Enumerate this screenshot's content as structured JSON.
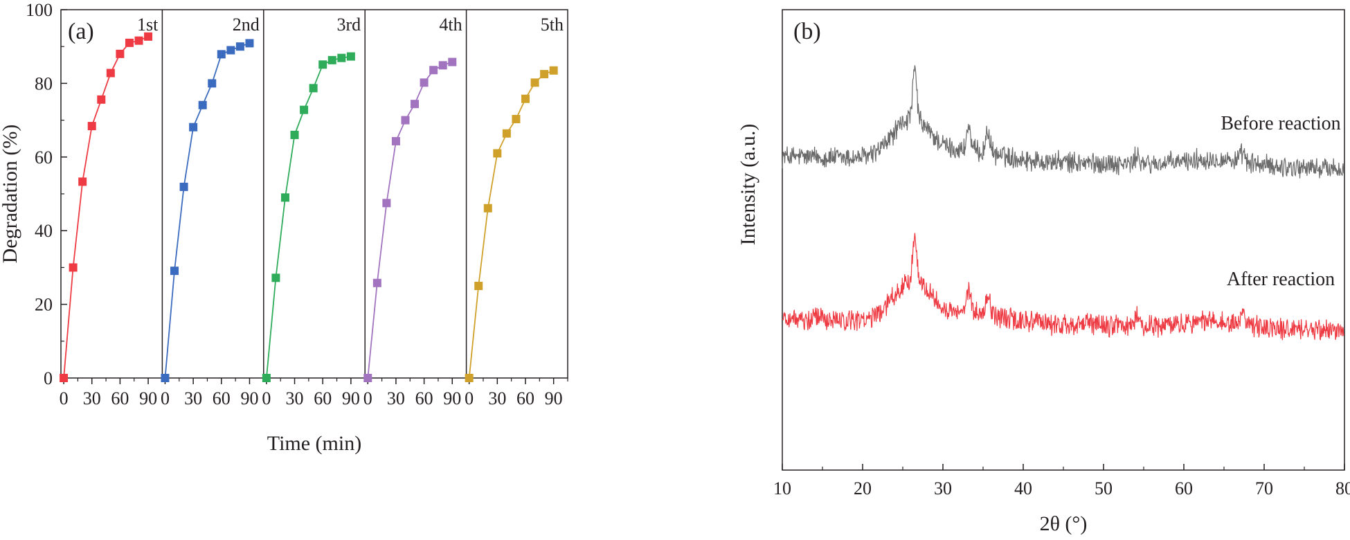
{
  "chart_data": [
    {
      "panel": "(a)",
      "type": "line",
      "xlabel": "Time (min)",
      "ylabel": "Degradation (%)",
      "ylim": [
        0,
        100
      ],
      "yticks": [
        0,
        20,
        40,
        60,
        80,
        100
      ],
      "xlim": [
        -3,
        105
      ],
      "xticks": [
        0,
        30,
        60,
        90
      ],
      "marker": "square",
      "grid": false,
      "series": [
        {
          "name": "1st",
          "color": "#ee3b43",
          "x": [
            0,
            10,
            20,
            30,
            40,
            50,
            60,
            70,
            80,
            90
          ],
          "y": [
            0,
            30,
            53.3,
            68.4,
            75.6,
            82.8,
            88.0,
            91.0,
            91.6,
            92.7
          ]
        },
        {
          "name": "2nd",
          "color": "#3b6bbf",
          "x": [
            0,
            10,
            20,
            30,
            40,
            50,
            60,
            70,
            80,
            90
          ],
          "y": [
            0,
            29.1,
            51.9,
            68.1,
            74.1,
            80.0,
            87.9,
            89.0,
            90.0,
            90.9
          ]
        },
        {
          "name": "3rd",
          "color": "#2eac5a",
          "x": [
            0,
            10,
            20,
            30,
            40,
            50,
            60,
            70,
            80,
            90
          ],
          "y": [
            0,
            27.2,
            49.0,
            66.0,
            72.8,
            78.7,
            85.1,
            86.3,
            86.9,
            87.3
          ]
        },
        {
          "name": "4th",
          "color": "#a274c0",
          "x": [
            0,
            10,
            20,
            30,
            40,
            50,
            60,
            70,
            80,
            90
          ],
          "y": [
            0,
            25.8,
            47.5,
            64.3,
            70.0,
            74.4,
            80.2,
            83.6,
            84.9,
            85.8
          ]
        },
        {
          "name": "5th",
          "color": "#d0a12a",
          "x": [
            0,
            10,
            20,
            30,
            40,
            50,
            60,
            70,
            80,
            90
          ],
          "y": [
            0,
            25.0,
            46.1,
            61.0,
            66.4,
            70.3,
            75.8,
            80.2,
            82.5,
            83.5
          ]
        }
      ]
    },
    {
      "panel": "(b)",
      "type": "line",
      "xlabel": "2θ (°)",
      "ylabel": "Intensity (a.u.)",
      "xlim": [
        10,
        80
      ],
      "xticks": [
        10,
        20,
        30,
        40,
        50,
        60,
        70,
        80
      ],
      "yticks": [],
      "grid": false,
      "peaks_2theta": [
        26.5,
        33.2,
        35.6,
        54.2,
        67.3
      ],
      "series": [
        {
          "name": "Before reaction",
          "color": "#6b6b6b"
        },
        {
          "name": "After reaction",
          "color": "#ee3b43"
        }
      ]
    }
  ]
}
